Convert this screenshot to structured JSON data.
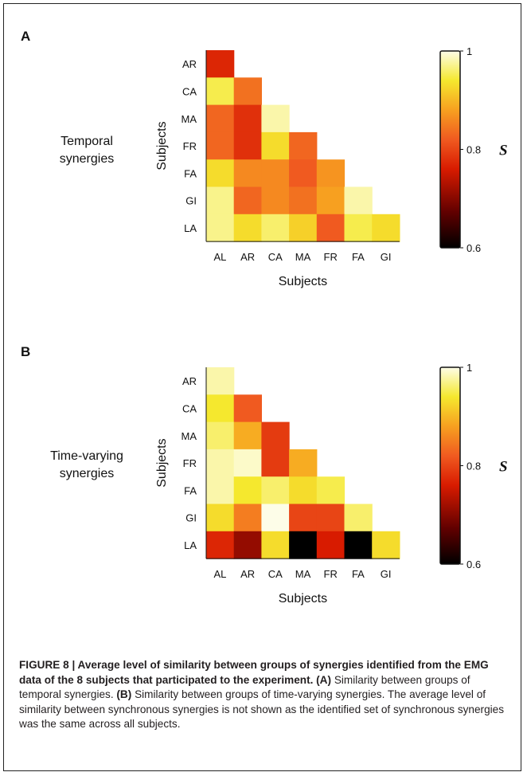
{
  "figure": {
    "caption_title": "FIGURE 8 | Average level of similarity between groups of synergies identified from the EMG data of the 8 subjects that participated to the experiment.",
    "caption_a_label": "(A)",
    "caption_a_text": "Similarity between groups of temporal synergies.",
    "caption_b_label": "(B)",
    "caption_b_text": "Similarity between groups of time-varying synergies. The average level of similarity between synchronous synergies is not shown as the identified set of synchronous synergies was the same across all subjects."
  },
  "chart_data": [
    {
      "type": "heatmap",
      "panel": "A",
      "label_lines": [
        "Temporal",
        "synergies"
      ],
      "xlabel": "Subjects",
      "ylabel": "Subjects",
      "x_categories": [
        "AL",
        "AR",
        "CA",
        "MA",
        "FR",
        "FA",
        "GI"
      ],
      "y_categories": [
        "AR",
        "CA",
        "MA",
        "FR",
        "FA",
        "GI",
        "LA"
      ],
      "values": [
        [
          0.77
        ],
        [
          0.95,
          0.84
        ],
        [
          0.83,
          0.78,
          0.98
        ],
        [
          0.83,
          0.78,
          0.93,
          0.83
        ],
        [
          0.93,
          0.86,
          0.86,
          0.82,
          0.87
        ],
        [
          0.97,
          0.83,
          0.86,
          0.84,
          0.88,
          0.98
        ],
        [
          0.97,
          0.93,
          0.96,
          0.92,
          0.82,
          0.95,
          0.93
        ]
      ],
      "colorbar": {
        "label": "S",
        "min": 0.6,
        "max": 1,
        "ticks": [
          1,
          0.8,
          0.6
        ]
      }
    },
    {
      "type": "heatmap",
      "panel": "B",
      "label_lines": [
        "Time-varying",
        "synergies"
      ],
      "xlabel": "Subjects",
      "ylabel": "Subjects",
      "x_categories": [
        "AL",
        "AR",
        "CA",
        "MA",
        "FR",
        "FA",
        "GI"
      ],
      "y_categories": [
        "AR",
        "CA",
        "MA",
        "FR",
        "FA",
        "GI",
        "LA"
      ],
      "values": [
        [
          0.98
        ],
        [
          0.94,
          0.82
        ],
        [
          0.96,
          0.89,
          0.79
        ],
        [
          0.98,
          0.99,
          0.79,
          0.89
        ],
        [
          0.98,
          0.94,
          0.96,
          0.93,
          0.95
        ],
        [
          0.93,
          0.85,
          1.0,
          0.8,
          0.8,
          0.96
        ],
        [
          0.77,
          0.71,
          0.93,
          0.6,
          0.76,
          0.6,
          0.93
        ]
      ],
      "colorbar": {
        "label": "S",
        "min": 0.6,
        "max": 1,
        "ticks": [
          1,
          0.8,
          0.6
        ]
      }
    }
  ]
}
